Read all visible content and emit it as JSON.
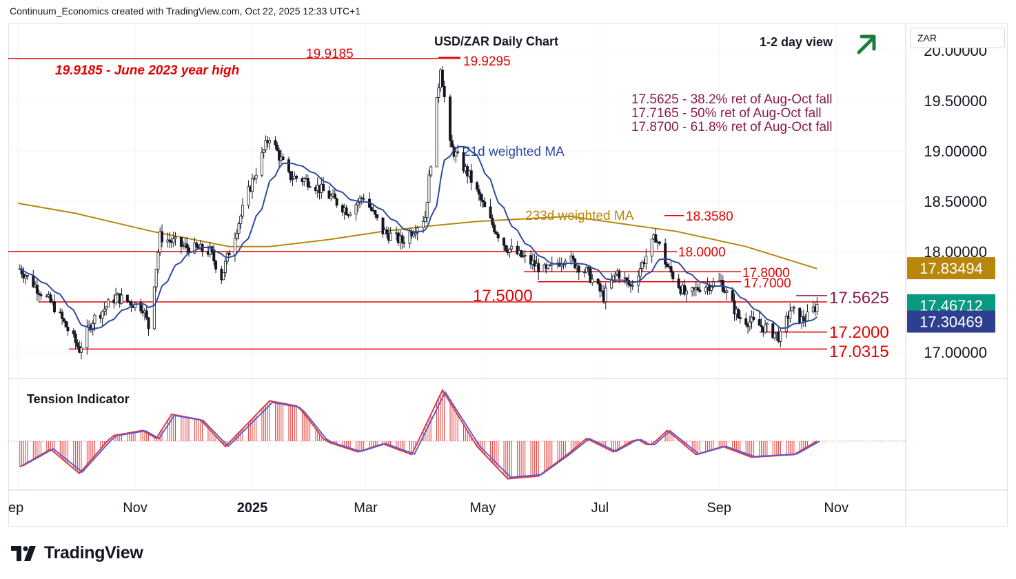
{
  "header": {
    "attribution": "Continuum_Economics created with TradingView.com, Oct 22, 2025 12:33 UTC+1"
  },
  "logo": {
    "text": "TradingView"
  },
  "currency_selector": {
    "value": "ZAR"
  },
  "chart_data": [
    {
      "type": "candlestick",
      "title": "USD/ZAR Daily Chart",
      "subtitle": "1-2 day view",
      "view_arrow": {
        "direction": "up",
        "color": "#1b7f3b",
        "icon": "arrow-up-right-icon"
      },
      "x_ticks": [
        "ep",
        "Nov",
        "2025",
        "Mar",
        "May",
        "Jul",
        "Sep",
        "Nov"
      ],
      "y_ticks": [
        "20.00000",
        "19.50000",
        "19.00000",
        "18.50000",
        "18.00000",
        "17.00000"
      ],
      "ylim": [
        16.75,
        20.2
      ],
      "colors": {
        "up": "#089981",
        "down": "#f23645",
        "level": "#e50000",
        "wma21": "#2e4a9e",
        "wma233": "#b8860b",
        "fib": "#8b1a4a"
      },
      "horizontal_levels": [
        {
          "value": 19.9185,
          "label": "19.9185"
        },
        {
          "value": 17.5,
          "label": "17.5000"
        },
        {
          "value": 17.0315,
          "label": "17.0315"
        }
      ],
      "level_labels": [
        "19.9295",
        "18.3580",
        "18.0000",
        "17.8000",
        "17.7000",
        "17.5625",
        "17.2000"
      ],
      "annotations": [
        "19.9185 - June 2023 year high",
        "17.5625 - 38.2% ret of Aug-Oct fall",
        "17.7165 - 50% ret of Aug-Oct fall",
        "17.8700 - 61.8% ret of Aug-Oct fall"
      ],
      "series": [
        {
          "name": "21d weighted MA",
          "color": "#2e4a9e",
          "last": "17.30469"
        },
        {
          "name": "233d weighted MA",
          "color": "#b8860b",
          "last": "17.83494"
        }
      ],
      "last_price": "17.46712",
      "keypoints": [
        [
          "Sep 1 2024",
          17.85
        ],
        [
          "Sep 20 2024",
          17.45
        ],
        [
          "Oct 3 2024",
          17.03
        ],
        [
          "Oct 10 2024",
          17.32
        ],
        [
          "Oct 22 2024",
          17.55
        ],
        [
          "Nov 5 2024",
          17.45
        ],
        [
          "Nov 8 2024",
          17.25
        ],
        [
          "Nov 14 2024",
          18.15
        ],
        [
          "Nov 26 2024",
          18.05
        ],
        [
          "Dec 10 2024",
          18.0
        ],
        [
          "Dec 16 2024",
          17.75
        ],
        [
          "Dec 20 2024",
          18.0
        ],
        [
          "Dec 31 2024",
          18.65
        ],
        [
          "Jan 10 2025",
          19.15
        ],
        [
          "Jan 20 2025",
          18.75
        ],
        [
          "Jan 31 2025",
          18.7
        ],
        [
          "Feb 10 2025",
          18.55
        ],
        [
          "Feb 20 2025",
          18.4
        ],
        [
          "Feb 28 2025",
          18.55
        ],
        [
          "Mar 10 2025",
          18.2
        ],
        [
          "Mar 20 2025",
          18.1
        ],
        [
          "Apr 1 2025",
          18.35
        ],
        [
          "Apr 4 2025",
          18.9
        ],
        [
          "Apr 9 2025",
          19.85
        ],
        [
          "Apr 14 2025",
          19.05
        ],
        [
          "Apr 24 2025",
          18.75
        ],
        [
          "May 5 2025",
          18.3
        ],
        [
          "May 13 2025",
          18.05
        ],
        [
          "May 21 2025",
          17.95
        ],
        [
          "Jun 3 2025",
          17.8
        ],
        [
          "Jun 13 2025",
          17.95
        ],
        [
          "Jun 24 2025",
          17.8
        ],
        [
          "Jul 3 2025",
          17.55
        ],
        [
          "Jul 10 2025",
          17.8
        ],
        [
          "Jul 17 2025",
          17.65
        ],
        [
          "Jul 30 2025",
          18.15
        ],
        [
          "Aug 5 2025",
          17.85
        ],
        [
          "Aug 15 2025",
          17.55
        ],
        [
          "Aug 22 2025",
          17.65
        ],
        [
          "Sep 2 2025",
          17.7
        ],
        [
          "Sep 11 2025",
          17.35
        ],
        [
          "Sep 24 2025",
          17.25
        ],
        [
          "Oct 3 2025",
          17.15
        ],
        [
          "Oct 8 2025",
          17.42
        ],
        [
          "Oct 14 2025",
          17.32
        ],
        [
          "Oct 17 2025",
          17.35
        ],
        [
          "Oct 22 2025",
          17.47
        ]
      ]
    },
    {
      "type": "histogram",
      "title": "Tension Indicator",
      "colors": {
        "bars": "#e53935",
        "line_red": "#e53935",
        "line_blue": "#5b5bd6"
      },
      "keypoints": [
        [
          "Sep 1 2024",
          -0.5
        ],
        [
          "Sep 18 2024",
          -0.15
        ],
        [
          "Oct 3 2024",
          -0.6
        ],
        [
          "Oct 20 2024",
          0.1
        ],
        [
          "Nov 5 2024",
          0.2
        ],
        [
          "Nov 12 2024",
          0.05
        ],
        [
          "Nov 20 2024",
          0.5
        ],
        [
          "Dec 5 2024",
          0.4
        ],
        [
          "Dec 18 2024",
          -0.1
        ],
        [
          "Jan 10 2025",
          0.75
        ],
        [
          "Jan 25 2025",
          0.65
        ],
        [
          "Feb 8 2025",
          0.0
        ],
        [
          "Feb 25 2025",
          -0.2
        ],
        [
          "Mar 10 2025",
          -0.05
        ],
        [
          "Mar 25 2025",
          -0.25
        ],
        [
          "Apr 10 2025",
          0.95
        ],
        [
          "Apr 28 2025",
          -0.1
        ],
        [
          "May 14 2025",
          -0.7
        ],
        [
          "May 30 2025",
          -0.65
        ],
        [
          "Jun 14 2025",
          -0.25
        ],
        [
          "Jun 24 2025",
          0.05
        ],
        [
          "Jul 8 2025",
          -0.2
        ],
        [
          "Jul 20 2025",
          0.05
        ],
        [
          "Jul 27 2025",
          -0.1
        ],
        [
          "Aug 5 2025",
          0.2
        ],
        [
          "Aug 20 2025",
          -0.25
        ],
        [
          "Sep 3 2025",
          -0.1
        ],
        [
          "Sep 18 2025",
          -0.3
        ],
        [
          "Oct 10 2025",
          -0.25
        ],
        [
          "Oct 22 2025",
          0.0
        ]
      ]
    }
  ]
}
